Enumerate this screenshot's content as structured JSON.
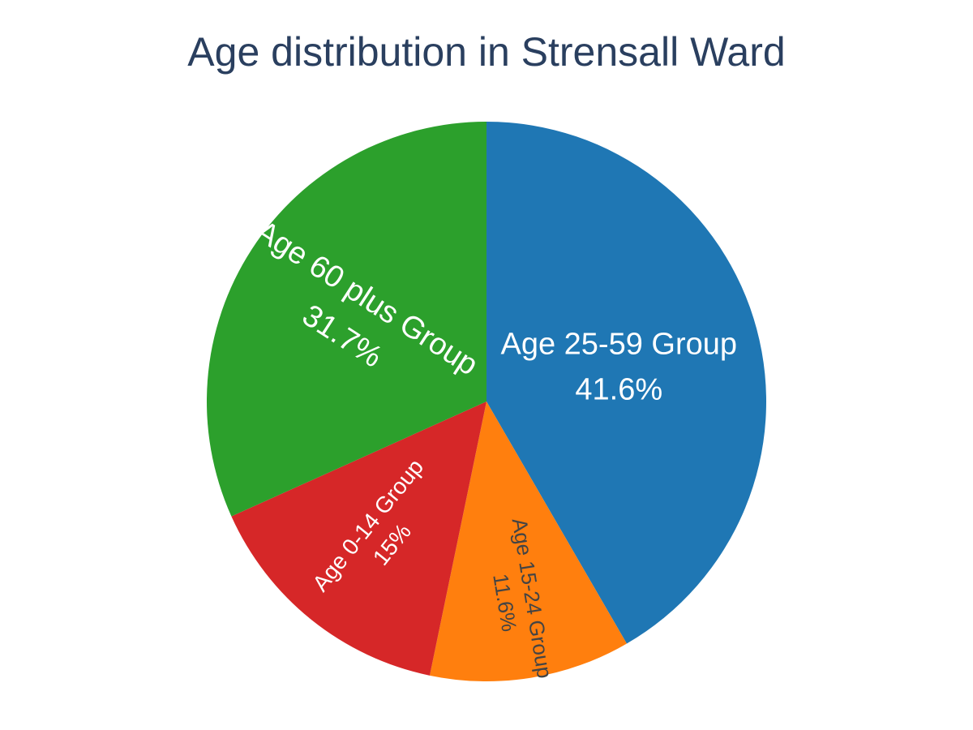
{
  "chart_data": {
    "type": "pie",
    "title": "Age distribution in Strensall Ward",
    "slices": [
      {
        "label": "Age 25-59 Group",
        "value": 41.6,
        "percent_text": "41.6%",
        "color": "#1f77b4",
        "text_color": "#ffffff"
      },
      {
        "label": "Age 15-24 Group",
        "value": 11.6,
        "percent_text": "11.6%",
        "color": "#ff7f0e",
        "text_color": "#444444"
      },
      {
        "label": "Age 0-14 Group",
        "value": 15.0,
        "percent_text": "15%",
        "color": "#d62728",
        "text_color": "#ffffff"
      },
      {
        "label": "Age 60 plus Group",
        "value": 31.7,
        "percent_text": "31.7%",
        "color": "#2ca02c",
        "text_color": "#ffffff"
      }
    ],
    "start": "top",
    "direction": "clockwise",
    "legend": "none"
  }
}
